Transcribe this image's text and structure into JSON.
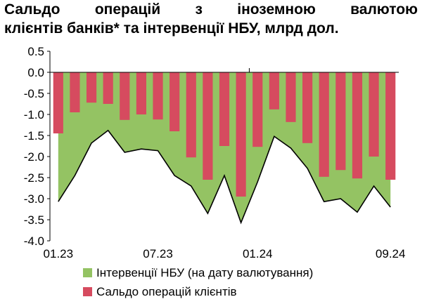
{
  "title": {
    "line1": "Сальдо операцій з іноземною валютою",
    "line2": "клієнтів банків* та інтервенції НБУ, млрд дол."
  },
  "colors": {
    "area": "#94c363",
    "bars": "#d64b5f",
    "line": "#000000"
  },
  "chart_data": {
    "type": "bar",
    "title": "Сальдо операцій з іноземною валютою клієнтів банків* та інтервенції НБУ, млрд дол.",
    "ylim": [
      -4.0,
      0.5
    ],
    "yticks": [
      "0.5",
      "0.0",
      "-0.5",
      "-1.0",
      "-1.5",
      "-2.0",
      "-2.5",
      "-3.0",
      "-3.5",
      "-4.0"
    ],
    "x_tick_labels": [
      "01.23",
      "07.23",
      "01.24",
      "09.24"
    ],
    "x_tick_indices": [
      0,
      6,
      12,
      20
    ],
    "legend_position": "bottom",
    "series": [
      {
        "name": "Інтервенції НБУ (на дату валютування)",
        "style": "area+line",
        "values": [
          -3.07,
          -2.45,
          -1.68,
          -1.38,
          -1.9,
          -1.82,
          -1.86,
          -2.45,
          -2.7,
          -3.35,
          -2.45,
          -3.57,
          -2.6,
          -1.52,
          -1.8,
          -2.28,
          -3.07,
          -3.0,
          -3.32,
          -2.7,
          -3.2
        ]
      },
      {
        "name": "Сальдо операцій клієнтів",
        "style": "bar",
        "values": [
          -1.45,
          -0.95,
          -0.72,
          -0.75,
          -1.13,
          -1.0,
          -1.12,
          -1.4,
          -2.02,
          -2.55,
          -1.75,
          -2.95,
          -1.77,
          -0.88,
          -1.18,
          -1.68,
          -2.48,
          -2.32,
          -2.52,
          -2.0,
          -2.55
        ]
      }
    ]
  }
}
